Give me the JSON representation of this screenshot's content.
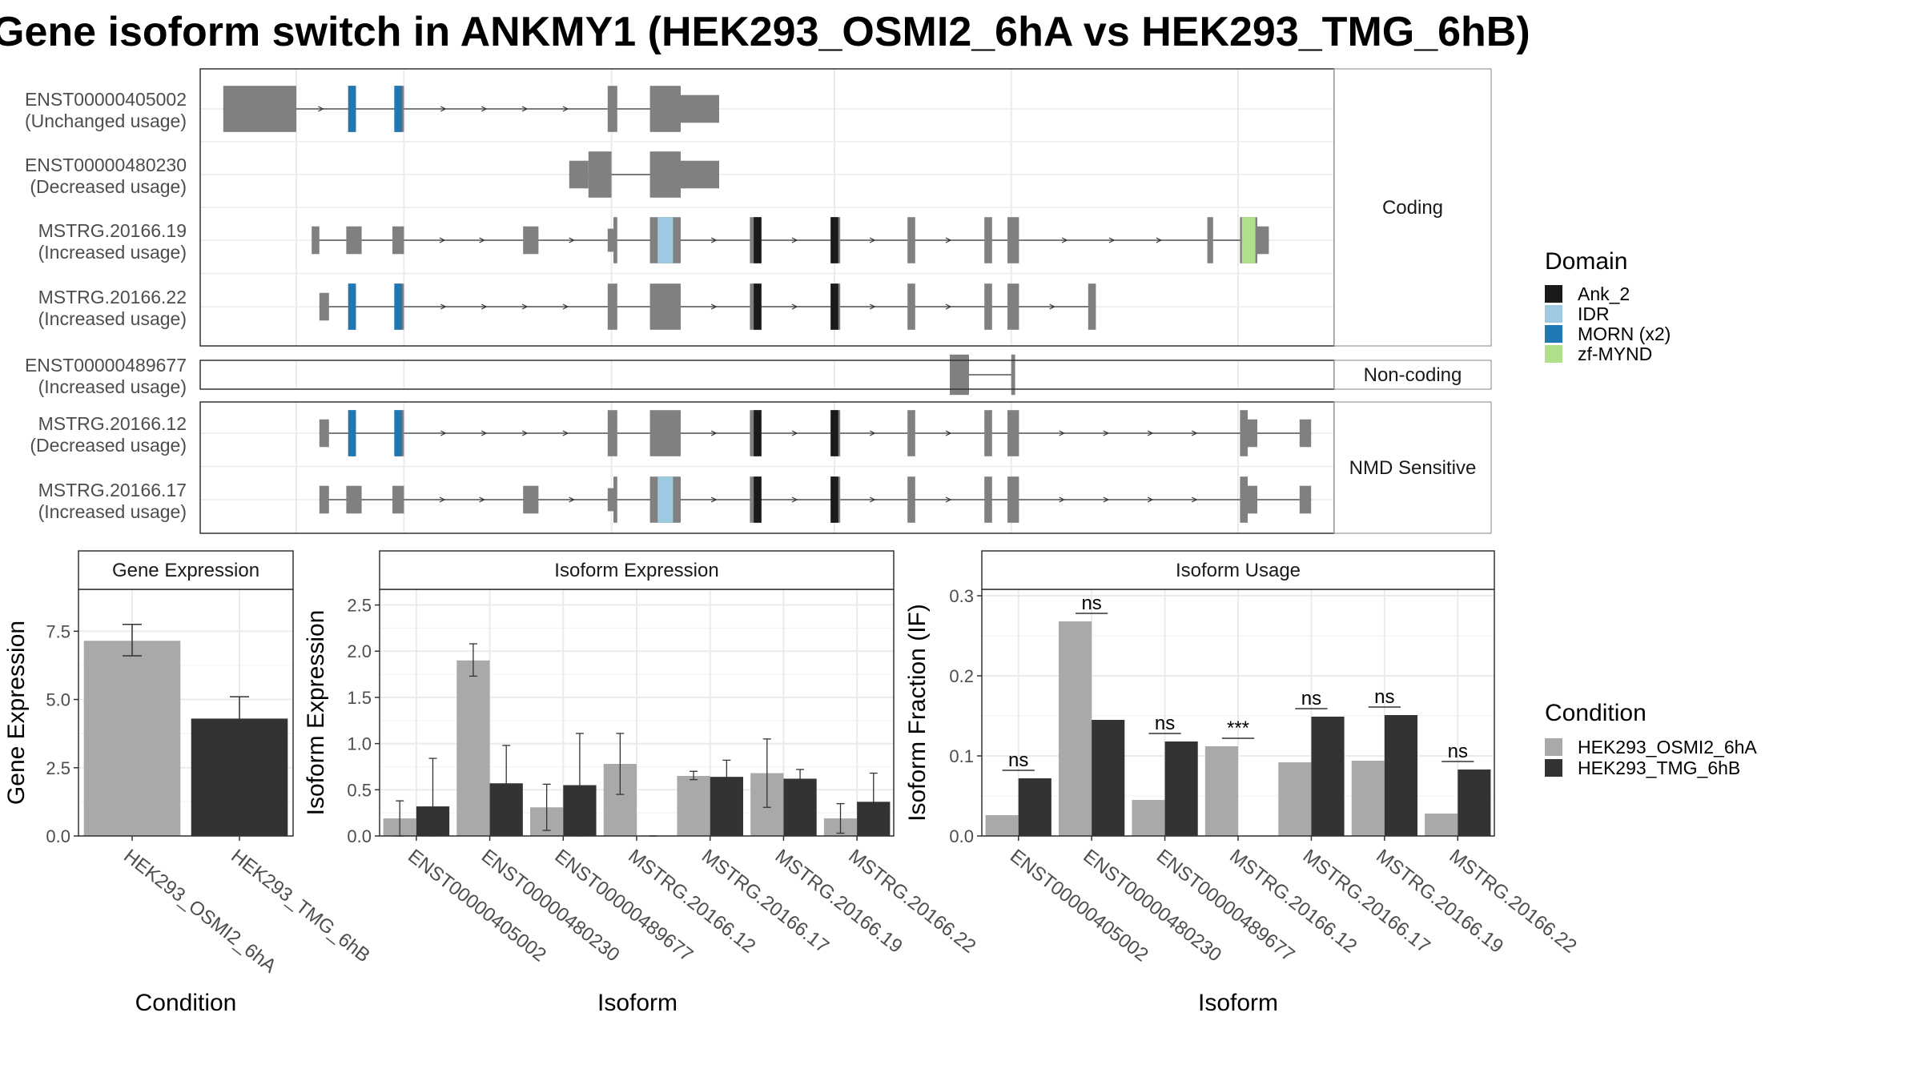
{
  "title": "Gene isoform switch in ANKMY1 (HEK293_OSMI2_6hA vs HEK293_TMG_6hB)",
  "colors": {
    "condA": "#a9a9a9",
    "condB": "#333333",
    "exon": "#808080",
    "Ank_2": "#1a1a1a",
    "IDR": "#9ecae1",
    "MORN (x2)": "#1f78b4",
    "zf-MYND": "#b2df8a"
  },
  "structure": {
    "groups": [
      {
        "label": "Coding",
        "isoforms": [
          {
            "id": "ENST00000405002",
            "usage": "(Unchanged usage)",
            "exons": [
              [
                0.6,
                2.5,
                1
              ],
              [
                3.85,
                4.05,
                1
              ],
              [
                5.05,
                5.3,
                1
              ],
              [
                10.6,
                10.85,
                1
              ],
              [
                11.7,
                12.5,
                1
              ],
              [
                12.5,
                13.5,
                0.6
              ]
            ],
            "domains": [
              [
                "MORN (x2)",
                3.85,
                4.05
              ],
              [
                "MORN (x2)",
                5.05,
                5.25
              ]
            ]
          },
          {
            "id": "ENST00000480230",
            "usage": "(Decreased usage)",
            "exons": [
              [
                9.6,
                10.1,
                0.6
              ],
              [
                10.1,
                10.7,
                1
              ],
              [
                11.7,
                12.5,
                1
              ],
              [
                12.5,
                13.5,
                0.6
              ]
            ],
            "domains": []
          },
          {
            "id": "MSTRG.20166.19",
            "usage": "(Increased usage)",
            "exons": [
              [
                2.9,
                3.1,
                0.6
              ],
              [
                3.8,
                4.2,
                0.6
              ],
              [
                5.0,
                5.3,
                0.6
              ],
              [
                8.4,
                8.8,
                0.6
              ],
              [
                10.6,
                10.75,
                0.5
              ],
              [
                10.75,
                10.85,
                1
              ],
              [
                11.7,
                12.5,
                1
              ],
              [
                14.3,
                14.6,
                1
              ],
              [
                16.4,
                16.65,
                1
              ],
              [
                18.4,
                18.6,
                1
              ],
              [
                20.4,
                20.6,
                1
              ],
              [
                21.0,
                21.3,
                1
              ],
              [
                26.2,
                26.35,
                1
              ],
              [
                27.05,
                27.5,
                1
              ],
              [
                27.5,
                27.8,
                0.6
              ]
            ],
            "domains": [
              [
                "IDR",
                11.9,
                12.3
              ],
              [
                "Ank_2",
                14.4,
                14.6
              ],
              [
                "Ank_2",
                16.4,
                16.6
              ],
              [
                "zf-MYND",
                27.1,
                27.45
              ]
            ]
          },
          {
            "id": "MSTRG.20166.22",
            "usage": "(Increased usage)",
            "exons": [
              [
                3.1,
                3.35,
                0.6
              ],
              [
                3.85,
                4.05,
                1
              ],
              [
                5.05,
                5.3,
                1
              ],
              [
                10.6,
                10.85,
                1
              ],
              [
                11.7,
                12.5,
                1
              ],
              [
                14.3,
                14.6,
                1
              ],
              [
                16.4,
                16.65,
                1
              ],
              [
                18.4,
                18.6,
                1
              ],
              [
                20.4,
                20.6,
                1
              ],
              [
                21.0,
                21.3,
                1
              ],
              [
                23.1,
                23.3,
                1
              ]
            ],
            "domains": [
              [
                "MORN (x2)",
                3.85,
                4.05
              ],
              [
                "MORN (x2)",
                5.05,
                5.25
              ],
              [
                "Ank_2",
                14.4,
                14.6
              ],
              [
                "Ank_2",
                16.4,
                16.6
              ]
            ]
          }
        ]
      },
      {
        "label": "Non-coding",
        "isoforms": [
          {
            "id": "ENST00000489677",
            "usage": "(Increased usage)",
            "exons": [
              [
                19.5,
                20.0,
                1
              ],
              [
                21.1,
                21.2,
                1
              ]
            ],
            "domains": []
          }
        ]
      },
      {
        "label": "NMD Sensitive",
        "isoforms": [
          {
            "id": "MSTRG.20166.12",
            "usage": "(Decreased usage)",
            "exons": [
              [
                3.1,
                3.35,
                0.6
              ],
              [
                3.85,
                4.05,
                1
              ],
              [
                5.05,
                5.3,
                1
              ],
              [
                10.6,
                10.85,
                1
              ],
              [
                11.7,
                12.5,
                1
              ],
              [
                14.3,
                14.6,
                1
              ],
              [
                16.4,
                16.65,
                1
              ],
              [
                18.4,
                18.6,
                1
              ],
              [
                20.4,
                20.6,
                1
              ],
              [
                21.0,
                21.3,
                1
              ],
              [
                27.05,
                27.25,
                1
              ],
              [
                27.25,
                27.5,
                0.6
              ],
              [
                28.6,
                28.9,
                0.6
              ]
            ],
            "domains": [
              [
                "MORN (x2)",
                3.85,
                4.05
              ],
              [
                "MORN (x2)",
                5.05,
                5.25
              ],
              [
                "Ank_2",
                14.4,
                14.6
              ],
              [
                "Ank_2",
                16.4,
                16.6
              ]
            ]
          },
          {
            "id": "MSTRG.20166.17",
            "usage": "(Increased usage)",
            "exons": [
              [
                3.1,
                3.35,
                0.6
              ],
              [
                3.8,
                4.2,
                0.6
              ],
              [
                5.0,
                5.3,
                0.6
              ],
              [
                8.4,
                8.8,
                0.6
              ],
              [
                10.6,
                10.75,
                0.5
              ],
              [
                10.75,
                10.85,
                1
              ],
              [
                11.7,
                12.5,
                1
              ],
              [
                14.3,
                14.6,
                1
              ],
              [
                16.4,
                16.65,
                1
              ],
              [
                18.4,
                18.6,
                1
              ],
              [
                20.4,
                20.6,
                1
              ],
              [
                21.0,
                21.3,
                1
              ],
              [
                27.05,
                27.25,
                1
              ],
              [
                27.25,
                27.5,
                0.6
              ],
              [
                28.6,
                28.9,
                0.6
              ]
            ],
            "domains": [
              [
                "IDR",
                11.9,
                12.3
              ],
              [
                "Ank_2",
                14.4,
                14.6
              ],
              [
                "Ank_2",
                16.4,
                16.6
              ]
            ]
          }
        ]
      }
    ]
  },
  "legends": {
    "domain": {
      "title": "Domain",
      "items": [
        "Ank_2",
        "IDR",
        "MORN (x2)",
        "zf-MYND"
      ]
    },
    "condition": {
      "title": "Condition",
      "items": [
        "HEK293_OSMI2_6hA",
        "HEK293_TMG_6hB"
      ]
    }
  },
  "chart_data": [
    {
      "type": "bar",
      "title": "Gene Expression",
      "xlabel": "Condition",
      "ylabel": "Gene Expression",
      "ylim": [
        0,
        8.8
      ],
      "yticks": [
        "0.0",
        "2.5",
        "5.0",
        "7.5"
      ],
      "categories": [
        "HEK293_OSMI2_6hA",
        "HEK293_TMG_6hB"
      ],
      "values": [
        7.15,
        4.3
      ],
      "errors": [
        [
          6.6,
          7.75
        ],
        [
          3.45,
          5.1
        ]
      ]
    },
    {
      "type": "bar",
      "title": "Isoform Expression",
      "xlabel": "Isoform",
      "ylabel": "Isoform Expression",
      "ylim": [
        0,
        2.6
      ],
      "yticks": [
        "0.0",
        "0.5",
        "1.0",
        "1.5",
        "2.0",
        "2.5"
      ],
      "categories": [
        "ENST00000405002",
        "ENST00000480230",
        "ENST00000489677",
        "MSTRG.20166.12",
        "MSTRG.20166.17",
        "MSTRG.20166.19",
        "MSTRG.20166.22"
      ],
      "series": [
        {
          "name": "HEK293_OSMI2_6hA",
          "values": [
            0.19,
            1.9,
            0.31,
            0.78,
            0.65,
            0.68,
            0.19
          ],
          "errors": [
            [
              0.0,
              0.38
            ],
            [
              1.73,
              2.08
            ],
            [
              0.06,
              0.56
            ],
            [
              0.45,
              1.11
            ],
            [
              0.61,
              0.7
            ],
            [
              0.31,
              1.05
            ],
            [
              0.03,
              0.35
            ]
          ]
        },
        {
          "name": "HEK293_TMG_6hB",
          "values": [
            0.32,
            0.57,
            0.55,
            0.0,
            0.64,
            0.62,
            0.37
          ],
          "errors": [
            [
              0.0,
              0.84
            ],
            [
              0.17,
              0.98
            ],
            [
              0.0,
              1.11
            ],
            [
              0.0,
              0.0
            ],
            [
              0.46,
              0.82
            ],
            [
              0.52,
              0.72
            ],
            [
              0.07,
              0.68
            ]
          ]
        }
      ]
    },
    {
      "type": "bar",
      "title": "Isoform Usage",
      "xlabel": "Isoform",
      "ylabel": "Isoform Fraction (IF)",
      "ylim": [
        0,
        0.3
      ],
      "yticks": [
        "0.0",
        "0.1",
        "0.2",
        "0.3"
      ],
      "categories": [
        "ENST00000405002",
        "ENST00000480230",
        "ENST00000489677",
        "MSTRG.20166.12",
        "MSTRG.20166.17",
        "MSTRG.20166.19",
        "MSTRG.20166.22"
      ],
      "series": [
        {
          "name": "HEK293_OSMI2_6hA",
          "values": [
            0.026,
            0.268,
            0.045,
            0.112,
            0.092,
            0.094,
            0.028
          ]
        },
        {
          "name": "HEK293_TMG_6hB",
          "values": [
            0.072,
            0.145,
            0.118,
            0.0,
            0.149,
            0.151,
            0.083
          ]
        }
      ],
      "significance": [
        "ns",
        "ns",
        "ns",
        "***",
        "ns",
        "ns",
        "ns"
      ]
    }
  ]
}
